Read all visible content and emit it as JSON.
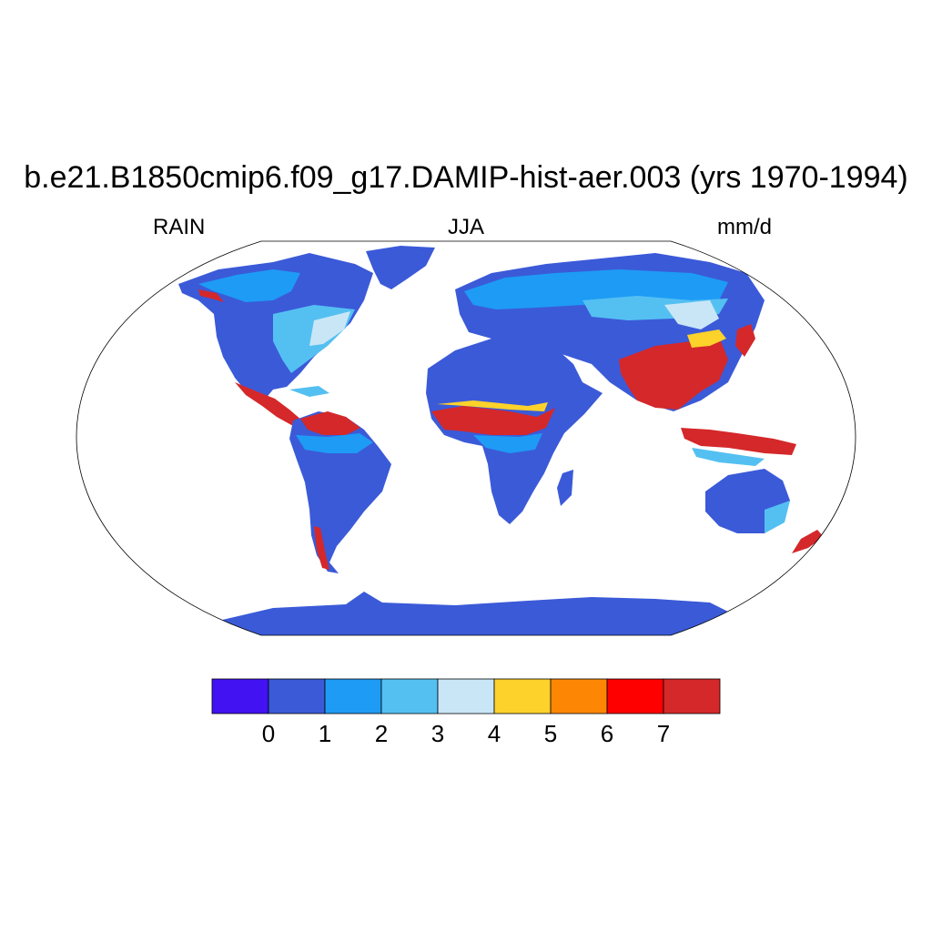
{
  "title": "b.e21.B1850cmip6.f09_g17.DAMIP-hist-aer.003 (yrs 1970-1994)",
  "variable": "RAIN",
  "season": "JJA",
  "units": "mm/d",
  "colorbar": {
    "colors": [
      "#4212f2",
      "#3b5ad8",
      "#1e9bf5",
      "#54c0f2",
      "#c9e6f7",
      "#fdd22a",
      "#fd8705",
      "#ff0000",
      "#d4282a"
    ],
    "levels": [
      "0",
      "1",
      "2",
      "3",
      "4",
      "5",
      "6",
      "7"
    ]
  }
}
